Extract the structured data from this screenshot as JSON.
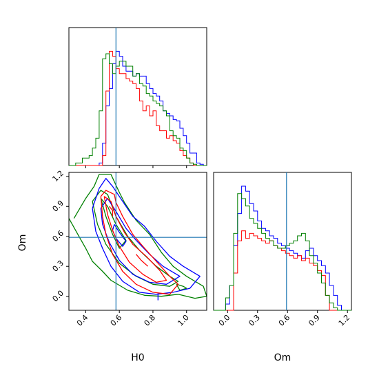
{
  "chart_data": [
    {
      "type": "histogram",
      "panel": "H0 marginal",
      "xlim": [
        0.3,
        1.12
      ],
      "truth": 0.58,
      "bins": [
        0.3,
        0.34,
        0.38,
        0.42,
        0.44,
        0.46,
        0.48,
        0.5,
        0.52,
        0.54,
        0.56,
        0.58,
        0.6,
        0.62,
        0.64,
        0.66,
        0.68,
        0.7,
        0.72,
        0.74,
        0.76,
        0.78,
        0.8,
        0.82,
        0.84,
        0.86,
        0.88,
        0.9,
        0.92,
        0.94,
        0.96,
        0.98,
        1.0,
        1.02,
        1.04,
        1.06,
        1.08,
        1.1,
        1.12
      ],
      "series": [
        {
          "color": "#0000ff",
          "values": [
            0,
            0,
            0,
            0,
            0,
            0,
            0.02,
            0.18,
            0.48,
            0.62,
            0.82,
            0.92,
            0.88,
            0.8,
            0.76,
            0.76,
            0.72,
            0.74,
            0.72,
            0.72,
            0.66,
            0.62,
            0.58,
            0.56,
            0.52,
            0.44,
            0.42,
            0.4,
            0.37,
            0.36,
            0.3,
            0.24,
            0.18,
            0.1,
            0.1,
            0.02,
            0.01,
            0
          ]
        },
        {
          "color": "#ff0000",
          "values": [
            0,
            0,
            0,
            0,
            0,
            0,
            0,
            0.08,
            0.6,
            0.92,
            0.88,
            0.78,
            0.74,
            0.74,
            0.7,
            0.68,
            0.66,
            0.62,
            0.52,
            0.44,
            0.48,
            0.4,
            0.44,
            0.32,
            0.28,
            0.28,
            0.22,
            0.24,
            0.2,
            0.18,
            0.12,
            0.08,
            0.06,
            0.02,
            0,
            0,
            0,
            0
          ]
        },
        {
          "color": "#008000",
          "values": [
            0,
            0.02,
            0.06,
            0.08,
            0.14,
            0.22,
            0.44,
            0.86,
            0.9,
            0.82,
            0.74,
            0.8,
            0.84,
            0.84,
            0.8,
            0.8,
            0.72,
            0.74,
            0.66,
            0.64,
            0.58,
            0.56,
            0.52,
            0.5,
            0.48,
            0.44,
            0.4,
            0.28,
            0.24,
            0.22,
            0.14,
            0.12,
            0.06,
            0.02,
            0.01,
            0,
            0,
            0
          ]
        }
      ]
    },
    {
      "type": "contour",
      "panel": "H0 vs Om",
      "xlabel": "H0",
      "ylabel": "Om",
      "xlim": [
        0.3,
        1.12
      ],
      "ylim": [
        -0.14,
        1.24
      ],
      "xticks": [
        "0.4",
        "0.6",
        "0.8",
        "1.0"
      ],
      "yticks": [
        "0.0",
        "0.3",
        "0.6",
        "0.9",
        "1.2"
      ],
      "truth": {
        "x": 0.58,
        "y": 0.59
      },
      "series": [
        {
          "color": "#008000",
          "contours": [
            [
              [
                0.33,
                0.78
              ],
              [
                0.4,
                0.98
              ],
              [
                0.45,
                1.1
              ],
              [
                0.48,
                1.22
              ],
              [
                0.55,
                1.22
              ],
              [
                0.6,
                1.04
              ],
              [
                0.63,
                0.94
              ],
              [
                0.7,
                0.76
              ],
              [
                0.78,
                0.62
              ],
              [
                0.85,
                0.44
              ],
              [
                0.92,
                0.3
              ],
              [
                1.0,
                0.2
              ],
              [
                1.1,
                0.1
              ],
              [
                1.12,
                0.0
              ],
              [
                1.05,
                -0.02
              ],
              [
                0.95,
                0.02
              ],
              [
                0.85,
                0.0
              ],
              [
                0.75,
                0.01
              ],
              [
                0.65,
                0.06
              ],
              [
                0.55,
                0.16
              ],
              [
                0.5,
                0.25
              ],
              [
                0.44,
                0.35
              ],
              [
                0.4,
                0.48
              ],
              [
                0.36,
                0.6
              ],
              [
                0.3,
                0.78
              ]
            ],
            [
              [
                0.44,
                0.95
              ],
              [
                0.49,
                1.06
              ],
              [
                0.53,
                1.02
              ],
              [
                0.58,
                0.8
              ],
              [
                0.65,
                0.6
              ],
              [
                0.72,
                0.46
              ],
              [
                0.82,
                0.3
              ],
              [
                0.9,
                0.2
              ],
              [
                0.95,
                0.15
              ],
              [
                0.9,
                0.1
              ],
              [
                0.8,
                0.12
              ],
              [
                0.7,
                0.2
              ],
              [
                0.6,
                0.33
              ],
              [
                0.52,
                0.52
              ],
              [
                0.47,
                0.72
              ],
              [
                0.44,
                0.95
              ]
            ],
            [
              [
                0.49,
                0.98
              ],
              [
                0.52,
                0.8
              ],
              [
                0.56,
                0.62
              ],
              [
                0.6,
                0.48
              ],
              [
                0.64,
                0.56
              ],
              [
                0.58,
                0.72
              ],
              [
                0.53,
                0.9
              ],
              [
                0.49,
                0.98
              ]
            ],
            [
              [
                0.94,
                0.12
              ],
              [
                0.98,
                0.1
              ],
              [
                1.0,
                0.08
              ],
              [
                0.96,
                0.06
              ],
              [
                0.94,
                0.12
              ]
            ]
          ]
        },
        {
          "color": "#0000ff",
          "contours": [
            [
              [
                0.44,
                0.88
              ],
              [
                0.48,
                1.08
              ],
              [
                0.52,
                1.18
              ],
              [
                0.56,
                1.1
              ],
              [
                0.62,
                0.95
              ],
              [
                0.68,
                0.8
              ],
              [
                0.75,
                0.7
              ],
              [
                0.82,
                0.55
              ],
              [
                0.9,
                0.4
              ],
              [
                0.98,
                0.3
              ],
              [
                1.08,
                0.2
              ],
              [
                1.02,
                0.08
              ],
              [
                0.92,
                0.04
              ],
              [
                0.82,
                0.02
              ],
              [
                0.72,
                0.04
              ],
              [
                0.62,
                0.15
              ],
              [
                0.55,
                0.3
              ],
              [
                0.5,
                0.48
              ],
              [
                0.46,
                0.65
              ],
              [
                0.44,
                0.88
              ]
            ],
            [
              [
                0.49,
                0.88
              ],
              [
                0.53,
                0.98
              ],
              [
                0.58,
                0.85
              ],
              [
                0.64,
                0.68
              ],
              [
                0.7,
                0.56
              ],
              [
                0.78,
                0.42
              ],
              [
                0.86,
                0.3
              ],
              [
                0.96,
                0.2
              ],
              [
                0.88,
                0.12
              ],
              [
                0.78,
                0.14
              ],
              [
                0.68,
                0.22
              ],
              [
                0.6,
                0.36
              ],
              [
                0.54,
                0.54
              ],
              [
                0.5,
                0.72
              ],
              [
                0.49,
                0.88
              ]
            ],
            [
              [
                0.57,
                0.72
              ],
              [
                0.6,
                0.64
              ],
              [
                0.64,
                0.55
              ],
              [
                0.62,
                0.5
              ],
              [
                0.58,
                0.58
              ],
              [
                0.56,
                0.66
              ],
              [
                0.57,
                0.72
              ]
            ],
            [
              [
                0.83,
                0.03
              ],
              [
                0.83,
                -0.04
              ]
            ]
          ]
        },
        {
          "color": "#ff0000",
          "contours": [
            [
              [
                0.49,
                1.0
              ],
              [
                0.52,
                1.06
              ],
              [
                0.57,
                1.02
              ],
              [
                0.58,
                0.94
              ],
              [
                0.62,
                0.8
              ],
              [
                0.68,
                0.62
              ],
              [
                0.74,
                0.5
              ],
              [
                0.82,
                0.35
              ],
              [
                0.9,
                0.2
              ],
              [
                0.95,
                0.12
              ],
              [
                0.9,
                0.02
              ],
              [
                0.8,
                0.04
              ],
              [
                0.7,
                0.12
              ],
              [
                0.62,
                0.25
              ],
              [
                0.56,
                0.42
              ],
              [
                0.52,
                0.62
              ],
              [
                0.5,
                0.8
              ],
              [
                0.49,
                1.0
              ]
            ],
            [
              [
                0.51,
                1.0
              ],
              [
                0.55,
                0.95
              ],
              [
                0.58,
                0.8
              ],
              [
                0.63,
                0.64
              ],
              [
                0.68,
                0.52
              ],
              [
                0.76,
                0.4
              ],
              [
                0.84,
                0.26
              ],
              [
                0.88,
                0.16
              ],
              [
                0.82,
                0.14
              ],
              [
                0.74,
                0.22
              ],
              [
                0.66,
                0.34
              ],
              [
                0.6,
                0.5
              ],
              [
                0.56,
                0.66
              ],
              [
                0.53,
                0.82
              ],
              [
                0.51,
                1.0
              ]
            ],
            [
              [
                0.54,
                0.9
              ],
              [
                0.56,
                0.86
              ],
              [
                0.56,
                0.8
              ]
            ],
            [
              [
                0.7,
                0.42
              ],
              [
                0.73,
                0.36
              ],
              [
                0.77,
                0.3
              ]
            ]
          ]
        }
      ]
    },
    {
      "type": "histogram",
      "panel": "Om marginal",
      "xlabel": "Om",
      "xlim": [
        -0.14,
        1.24
      ],
      "xticks": [
        "0.0",
        "0.3",
        "0.6",
        "0.9",
        "1.2"
      ],
      "truth": 0.59,
      "bins": [
        -0.14,
        -0.1,
        -0.06,
        -0.02,
        0.02,
        0.06,
        0.1,
        0.14,
        0.18,
        0.22,
        0.26,
        0.3,
        0.34,
        0.38,
        0.42,
        0.46,
        0.5,
        0.54,
        0.58,
        0.62,
        0.66,
        0.7,
        0.74,
        0.78,
        0.82,
        0.86,
        0.9,
        0.94,
        0.98,
        1.02,
        1.06,
        1.1,
        1.14,
        1.18,
        1.22,
        1.24
      ],
      "series": [
        {
          "color": "#0000ff",
          "values": [
            0,
            0,
            0,
            0.05,
            0.2,
            0.52,
            0.78,
            1.0,
            0.96,
            0.86,
            0.8,
            0.72,
            0.66,
            0.64,
            0.6,
            0.58,
            0.54,
            0.52,
            0.5,
            0.48,
            0.46,
            0.44,
            0.42,
            0.48,
            0.5,
            0.44,
            0.4,
            0.36,
            0.3,
            0.2,
            0.12,
            0.04,
            0,
            0,
            0
          ]
        },
        {
          "color": "#ff0000",
          "values": [
            0,
            0,
            0,
            0,
            0,
            0.3,
            0.56,
            0.64,
            0.58,
            0.62,
            0.6,
            0.58,
            0.56,
            0.54,
            0.56,
            0.52,
            0.5,
            0.48,
            0.46,
            0.44,
            0.42,
            0.44,
            0.4,
            0.42,
            0.38,
            0.36,
            0.32,
            0.28,
            0.12,
            0,
            0,
            0,
            0,
            0,
            0
          ]
        },
        {
          "color": "#008000",
          "values": [
            0,
            0,
            0,
            0.1,
            0.2,
            0.62,
            0.94,
            0.9,
            0.84,
            0.74,
            0.7,
            0.66,
            0.62,
            0.58,
            0.56,
            0.52,
            0.5,
            0.5,
            0.52,
            0.54,
            0.56,
            0.6,
            0.62,
            0.56,
            0.44,
            0.38,
            0.3,
            0.22,
            0.12,
            0.06,
            0.02,
            0,
            0,
            0,
            0
          ]
        }
      ]
    }
  ]
}
